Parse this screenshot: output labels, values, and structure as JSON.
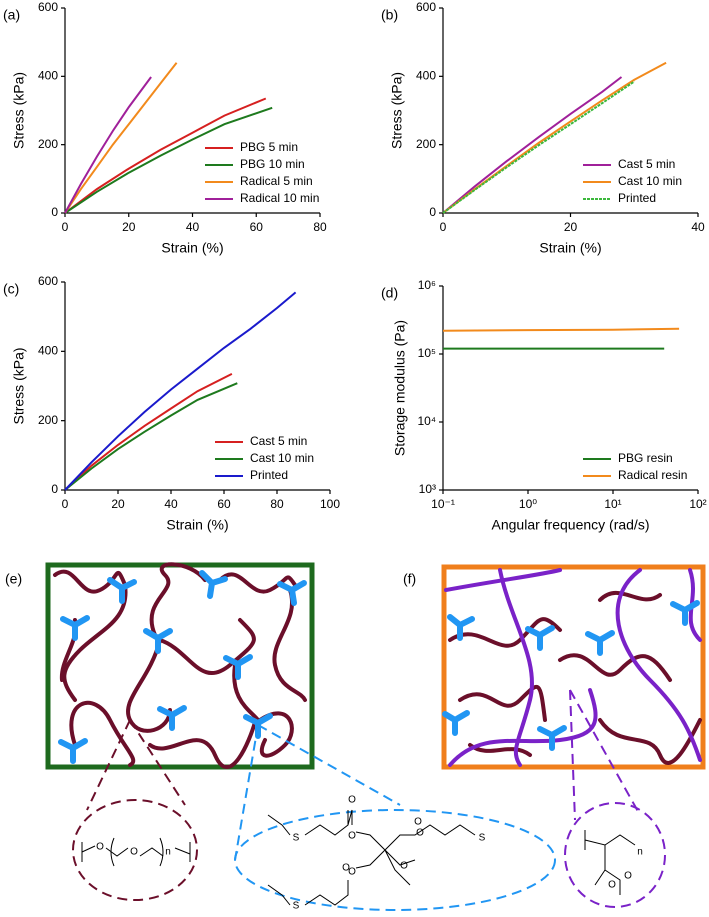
{
  "chart_data": [
    {
      "type": "line",
      "panel_label": "(a)",
      "x_label": "Strain (%)",
      "y_label": "Stress (kPa)",
      "xlim": [
        0,
        80
      ],
      "xticks": [
        0,
        20,
        40,
        60,
        80
      ],
      "ylim": [
        0,
        600
      ],
      "yticks": [
        0,
        200,
        400,
        600
      ],
      "legend": "lower right",
      "series": [
        {
          "name": "PBG 5 min",
          "color": "#d62020",
          "x": [
            0,
            10,
            20,
            30,
            40,
            50,
            63
          ],
          "values": [
            0,
            70,
            130,
            185,
            235,
            285,
            335
          ]
        },
        {
          "name": "PBG 10 min",
          "color": "#1e7a1e",
          "x": [
            0,
            10,
            20,
            30,
            40,
            50,
            65
          ],
          "values": [
            0,
            62,
            118,
            168,
            215,
            260,
            308
          ]
        },
        {
          "name": "Radical 5 min",
          "color": "#f28a1c",
          "x": [
            0,
            5,
            10,
            15,
            20,
            25,
            30,
            35
          ],
          "values": [
            0,
            70,
            135,
            200,
            260,
            320,
            380,
            440
          ]
        },
        {
          "name": "Radical 10 min",
          "color": "#a0209a",
          "x": [
            0,
            5,
            10,
            15,
            20,
            27
          ],
          "values": [
            0,
            85,
            165,
            240,
            310,
            398
          ]
        }
      ]
    },
    {
      "type": "line",
      "panel_label": "(b)",
      "x_label": "Strain (%)",
      "y_label": "Stress (kPa)",
      "xlim": [
        0,
        40
      ],
      "xticks": [
        0,
        20,
        40
      ],
      "ylim": [
        0,
        600
      ],
      "yticks": [
        0,
        200,
        400,
        600
      ],
      "legend": "lower right",
      "series": [
        {
          "name": "Cast 5 min",
          "color": "#a0209a",
          "x": [
            0,
            5,
            10,
            15,
            20,
            25,
            28
          ],
          "values": [
            0,
            78,
            152,
            222,
            290,
            355,
            398
          ]
        },
        {
          "name": "Cast 10 min",
          "color": "#f28a1c",
          "x": [
            0,
            5,
            10,
            15,
            20,
            25,
            30,
            35
          ],
          "values": [
            0,
            70,
            138,
            205,
            268,
            330,
            390,
            440
          ]
        },
        {
          "name": "Printed",
          "color": "#3cb83c",
          "style": "dashed",
          "x": [
            0,
            5,
            10,
            15,
            20,
            25,
            30
          ],
          "values": [
            0,
            68,
            134,
            198,
            260,
            322,
            385
          ]
        }
      ]
    },
    {
      "type": "line",
      "panel_label": "(c)",
      "x_label": "Strain (%)",
      "y_label": "Stress (kPa)",
      "xlim": [
        0,
        100
      ],
      "xticks": [
        0,
        20,
        40,
        60,
        80,
        100
      ],
      "ylim": [
        0,
        600
      ],
      "yticks": [
        0,
        200,
        400,
        600
      ],
      "legend": "lower right",
      "series": [
        {
          "name": "Cast 5 min",
          "color": "#d62020",
          "x": [
            0,
            10,
            20,
            30,
            40,
            50,
            63
          ],
          "values": [
            0,
            70,
            130,
            185,
            235,
            285,
            335
          ]
        },
        {
          "name": "Cast 10 min",
          "color": "#1e7a1e",
          "x": [
            0,
            10,
            20,
            30,
            40,
            50,
            65
          ],
          "values": [
            0,
            62,
            118,
            168,
            215,
            260,
            308
          ]
        },
        {
          "name": "Printed",
          "color": "#1a1acc",
          "x": [
            0,
            10,
            20,
            30,
            40,
            50,
            60,
            70,
            80,
            87
          ],
          "values": [
            0,
            80,
            155,
            225,
            290,
            350,
            410,
            465,
            525,
            570
          ]
        }
      ]
    },
    {
      "type": "line",
      "panel_label": "(d)",
      "x_label": "Angular frequency (rad/s)",
      "y_label": "Storage modulus (Pa)",
      "xscale": "log",
      "yscale": "log",
      "xlim": [
        0.1,
        100
      ],
      "ylim": [
        1000,
        1000000
      ],
      "legend": "lower right",
      "xticks": [
        {
          "value": 0.1,
          "label": "10⁻¹"
        },
        {
          "value": 1,
          "label": "10⁰"
        },
        {
          "value": 10,
          "label": "10¹"
        },
        {
          "value": 100,
          "label": "10²"
        }
      ],
      "yticks": [
        {
          "value": 1000,
          "label": "10³"
        },
        {
          "value": 10000,
          "label": "10⁴"
        },
        {
          "value": 100000,
          "label": "10⁵"
        },
        {
          "value": 1000000,
          "label": "10⁶"
        }
      ],
      "series": [
        {
          "name": "PBG resin",
          "color": "#1e7a1e",
          "x": [
            0.1,
            1,
            10,
            40
          ],
          "values": [
            120000,
            120000,
            120000,
            120000
          ]
        },
        {
          "name": "Radical resin",
          "color": "#f28a1c",
          "x": [
            0.1,
            1,
            10,
            60
          ],
          "values": [
            220000,
            225000,
            228000,
            235000
          ]
        }
      ]
    }
  ],
  "diagrams": {
    "panels": [
      {
        "label": "(e)"
      },
      {
        "label": "(f)"
      }
    ],
    "structures": [
      {
        "texts": [
          "O",
          "O",
          "n"
        ]
      },
      {
        "texts": [
          "S",
          "O",
          "O",
          "O",
          "O",
          "S",
          "S",
          "O",
          "O",
          "O"
        ]
      },
      {
        "texts": [
          "n",
          "O",
          "O"
        ]
      }
    ]
  }
}
